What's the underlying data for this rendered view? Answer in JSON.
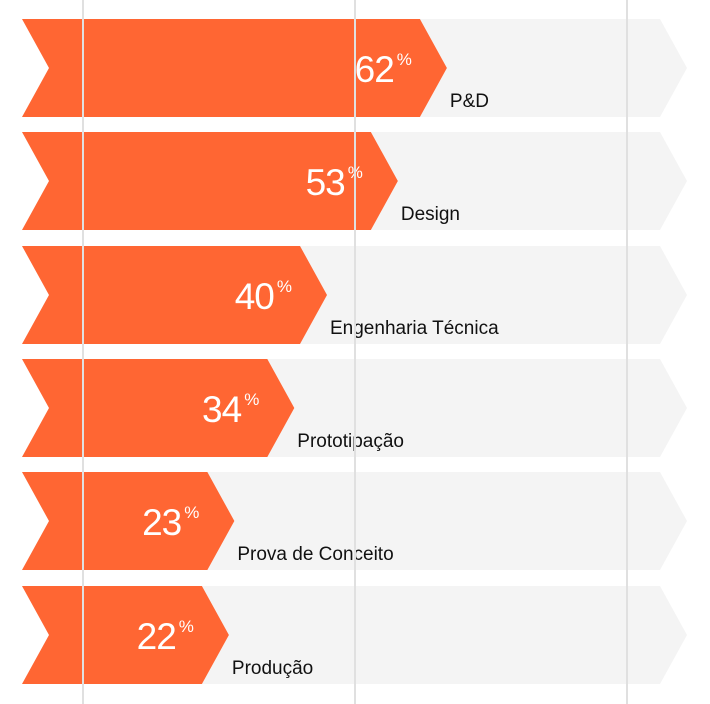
{
  "chart_data": {
    "type": "bar",
    "orientation": "horizontal",
    "title": "",
    "xlabel": "",
    "ylabel": "",
    "xlim": [
      0,
      100
    ],
    "grid": true,
    "gridlines_at": [
      0,
      50,
      100
    ],
    "value_suffix": "%",
    "categories": [
      "P&D",
      "Design",
      "Engenharia Técnica",
      "Prototipação",
      "Prova de Conceito",
      "Produção"
    ],
    "values": [
      62,
      53,
      40,
      34,
      23,
      22
    ],
    "legend": null
  },
  "colors": {
    "bar": "#FF6633",
    "track": "#F4F4F4",
    "grid": "#E0E0E0",
    "value_text": "#FFFFFF",
    "label_text": "#111111"
  },
  "rows": [
    {
      "label": "P&D",
      "value": "62",
      "sign": "%"
    },
    {
      "label": "Design",
      "value": "53",
      "sign": "%"
    },
    {
      "label": "Engenharia Técnica",
      "value": "40",
      "sign": "%"
    },
    {
      "label": "Prototipação",
      "value": "34",
      "sign": "%"
    },
    {
      "label": "Prova de Conceito",
      "value": "23",
      "sign": "%"
    },
    {
      "label": "Produção",
      "value": "22",
      "sign": "%"
    }
  ]
}
